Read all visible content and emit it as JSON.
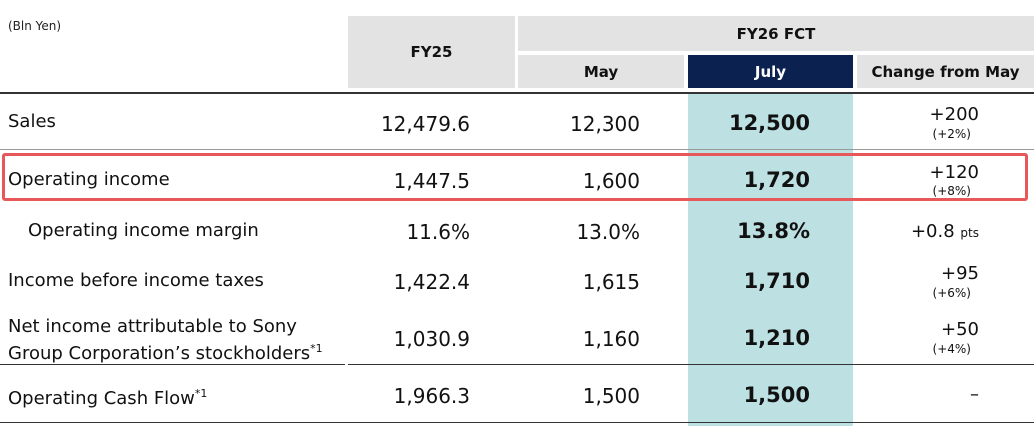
{
  "unit_note": "(Bln Yen)",
  "header": {
    "fy25": "FY25",
    "fy26": "FY26 FCT",
    "may": "May",
    "july": "July",
    "change": "Change from May"
  },
  "rows": [
    {
      "label": "Sales",
      "fy25": "12,479.6",
      "may": "12,300",
      "july": "12,500",
      "change": "+200",
      "change_pct": "(+2%)"
    },
    {
      "label": "Operating income",
      "fy25": "1,447.5",
      "may": "1,600",
      "july": "1,720",
      "change": "+120",
      "change_pct": "(+8%)"
    },
    {
      "label": "Operating income margin",
      "fy25": "11.6%",
      "may": "13.0%",
      "july": "13.8%",
      "change": "+0.8",
      "change_unit": "pts"
    },
    {
      "label": "Income before income taxes",
      "fy25": "1,422.4",
      "may": "1,615",
      "july": "1,710",
      "change": "+95",
      "change_pct": "(+6%)"
    },
    {
      "label_line1": "Net income attributable to Sony",
      "label_line2": "Group Corporation’s stockholders",
      "footnote": "*1",
      "fy25": "1,030.9",
      "may": "1,160",
      "july": "1,210",
      "change": "+50",
      "change_pct": "(+4%)"
    },
    {
      "label": "Operating Cash Flow",
      "footnote": "*1",
      "fy25": "1,966.3",
      "may": "1,500",
      "july": "1,500",
      "change": "–"
    }
  ],
  "colors": {
    "header_gray": "#e3e3e3",
    "july_header": "#0b2150",
    "july_band": "#bde0e3",
    "highlight_border": "#e8575a"
  }
}
